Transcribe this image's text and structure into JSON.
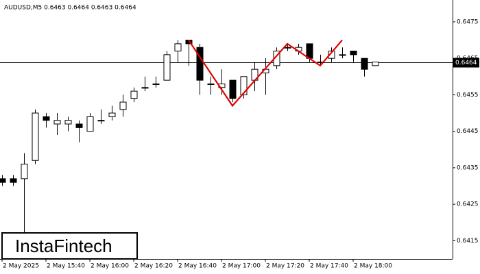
{
  "chart_data": {
    "type": "candlestick",
    "title": "AUDUSD,M5  0.6463 0.6464 0.6463 0.6464",
    "brand": "InstaFintech",
    "categories": [
      "2 May 2025",
      null,
      null,
      null,
      "2 May 15:40",
      null,
      null,
      null,
      "2 May 16:00",
      null,
      null,
      null,
      "2 May 16:20",
      null,
      null,
      null,
      "2 May 16:40",
      null,
      null,
      null,
      "2 May 17:00",
      null,
      null,
      null,
      "2 May 17:20",
      null,
      null,
      null,
      "2 May 17:40",
      null,
      null,
      null,
      "2 May 18:00",
      null,
      null
    ],
    "open": [
      0.6432,
      0.6432,
      0.6432,
      0.6437,
      0.6449,
      0.6447,
      0.6447,
      0.6447,
      0.6445,
      0.6448,
      0.6449,
      0.6451,
      0.6454,
      0.6457,
      0.6458,
      0.6459,
      0.6467,
      0.647,
      0.6468,
      0.6458,
      0.6457,
      0.6459,
      0.6455,
      0.6459,
      0.6461,
      0.6463,
      0.6468,
      0.6467,
      0.6469,
      0.6464,
      0.6465,
      0.6466,
      0.6467,
      0.6465,
      0.6463
    ],
    "high": [
      0.6433,
      0.6433,
      0.6439,
      0.6451,
      0.645,
      0.645,
      0.6449,
      0.6448,
      0.645,
      0.6451,
      0.6452,
      0.6455,
      0.6457,
      0.646,
      0.646,
      0.6467,
      0.647,
      0.647,
      0.6469,
      0.646,
      0.6462,
      0.6459,
      0.646,
      0.6464,
      0.6465,
      0.6468,
      0.6469,
      0.6469,
      0.6469,
      0.6466,
      0.6468,
      0.6468,
      0.6467,
      0.6465,
      0.6464
    ],
    "low": [
      0.643,
      0.643,
      0.6417,
      0.6436,
      0.6446,
      0.6444,
      0.6445,
      0.6442,
      0.6445,
      0.6447,
      0.6448,
      0.6449,
      0.6453,
      0.6456,
      0.6457,
      0.6459,
      0.6464,
      0.6463,
      0.6455,
      0.6455,
      0.6455,
      0.6453,
      0.6454,
      0.6456,
      0.6455,
      0.6462,
      0.6467,
      0.6466,
      0.6464,
      0.6463,
      0.6464,
      0.6465,
      0.6464,
      0.646,
      0.6463
    ],
    "close": [
      0.6431,
      0.6431,
      0.6436,
      0.645,
      0.6448,
      0.6448,
      0.6448,
      0.6446,
      0.6449,
      0.6448,
      0.645,
      0.6453,
      0.6456,
      0.6457,
      0.6458,
      0.6466,
      0.6469,
      0.6469,
      0.6459,
      0.6458,
      0.6458,
      0.6454,
      0.646,
      0.6462,
      0.6462,
      0.6467,
      0.6468,
      0.6468,
      0.6465,
      0.6464,
      0.6467,
      0.6466,
      0.6466,
      0.6462,
      0.6464
    ],
    "ylim": [
      0.641,
      0.6481
    ],
    "yticks": [
      0.6475,
      0.6465,
      0.6455,
      0.6445,
      0.6435,
      0.6425,
      0.6415
    ],
    "current_price": 0.6464,
    "pattern": {
      "color": "#e00000",
      "x": [
        17,
        21,
        26,
        29,
        31
      ],
      "values": [
        0.647,
        0.6452,
        0.6469,
        0.6463,
        0.647
      ]
    }
  }
}
